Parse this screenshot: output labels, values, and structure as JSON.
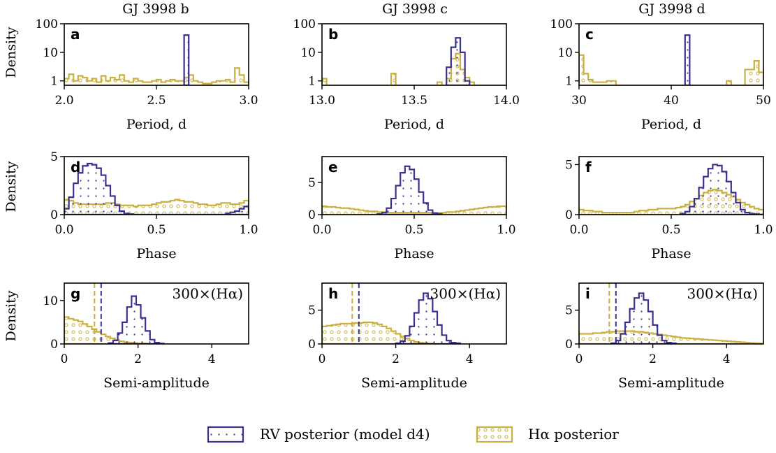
{
  "colors": {
    "rv": "#3b2f8f",
    "ha": "#c9b040"
  },
  "columns": [
    "GJ 3998 b",
    "GJ 3998 c",
    "GJ 3998 d"
  ],
  "ylabel": "Density",
  "legend": {
    "rv_label": "RV posterior (model d4)",
    "ha_label": "Hα posterior"
  },
  "chart_data": [
    {
      "letter": "a",
      "type": "histogram",
      "xlabel": "Period, d",
      "log_y": true,
      "xlim": [
        2.0,
        3.0
      ],
      "ylim": [
        0.7,
        100
      ],
      "xticks": [
        2.0,
        2.5,
        3.0
      ],
      "xtick_labels": [
        "2.0",
        "2.5",
        "3.0"
      ],
      "yticks": [
        1,
        10,
        100
      ],
      "ytick_labels": [
        "1",
        "10",
        "100"
      ],
      "bin_width": 0.025,
      "rv": {
        "start": 2.65,
        "values": [
          40
        ]
      },
      "ha": {
        "start": 2.0,
        "values": [
          1.2,
          1.7,
          1.0,
          1.5,
          1.3,
          1.0,
          1.2,
          0.9,
          1.5,
          1.0,
          1.3,
          1.1,
          1.6,
          1.0,
          0.9,
          1.2,
          1.0,
          0.9,
          0.9,
          1.0,
          1.1,
          0.9,
          1.0,
          1.1,
          1.0,
          1.0,
          1.3,
          1.6,
          1.0,
          0.9,
          0.8,
          0.8,
          0.9,
          1.0,
          1.0,
          1.1,
          0.9,
          2.8,
          1.6,
          0.9
        ]
      }
    },
    {
      "letter": "b",
      "type": "histogram",
      "xlabel": "Period, d",
      "log_y": true,
      "xlim": [
        13.0,
        14.0
      ],
      "ylim": [
        0.7,
        100
      ],
      "xticks": [
        13.0,
        13.5,
        14.0
      ],
      "xtick_labels": [
        "13.0",
        "13.5",
        "14.0"
      ],
      "yticks": [
        1,
        10,
        100
      ],
      "ytick_labels": [
        "1",
        "10",
        "100"
      ],
      "bin_width": 0.025,
      "rv": {
        "start": 13.675,
        "values": [
          3,
          15,
          32,
          10,
          1
        ]
      },
      "ha": {
        "start": 13.0,
        "values": [
          1.2,
          0,
          0,
          0,
          0,
          0,
          0,
          0,
          0,
          0,
          0,
          0,
          0,
          0,
          0,
          1.8,
          0,
          0,
          0,
          0,
          0,
          0,
          0,
          0,
          0,
          0.9,
          0,
          1.2,
          6,
          9,
          2.5,
          1.3,
          0.9,
          0,
          0,
          0,
          0,
          0,
          0,
          0
        ]
      }
    },
    {
      "letter": "c",
      "type": "histogram",
      "xlabel": "Period, d",
      "log_y": true,
      "xlim": [
        30,
        50
      ],
      "ylim": [
        0.7,
        100
      ],
      "xticks": [
        30,
        40,
        50
      ],
      "xtick_labels": [
        "30",
        "40",
        "50"
      ],
      "yticks": [
        1,
        10,
        100
      ],
      "ytick_labels": [
        "1",
        "10",
        "100"
      ],
      "bin_width": 0.5,
      "rv": {
        "start": 41.5,
        "values": [
          40
        ]
      },
      "ha": {
        "start": 30.0,
        "values": [
          8,
          1.8,
          1.1,
          0.9,
          0.9,
          0.9,
          1.0,
          1.0,
          0,
          0,
          0,
          0,
          0,
          0,
          0,
          0,
          0,
          0,
          0,
          0,
          0,
          0,
          0,
          0,
          0,
          0,
          0,
          0,
          0,
          0,
          0,
          0,
          1.0,
          0,
          0,
          0,
          2.5,
          2.5,
          5,
          2
        ]
      }
    },
    {
      "letter": "d",
      "type": "histogram",
      "xlabel": "Phase",
      "log_y": false,
      "xlim": [
        0,
        1
      ],
      "ylim": [
        0,
        5
      ],
      "xticks": [
        0.0,
        0.5,
        1.0
      ],
      "xtick_labels": [
        "0.0",
        "0.5",
        "1.0"
      ],
      "yticks": [
        0,
        5
      ],
      "ytick_labels": [
        "0",
        "5"
      ],
      "bin_width": 0.025,
      "rv": {
        "start": 0.0,
        "values": [
          0.5,
          1.5,
          2.7,
          3.6,
          4.2,
          4.4,
          4.3,
          4.0,
          3.4,
          2.5,
          1.6,
          0.8,
          0.3,
          0.1,
          0.05,
          0,
          0,
          0,
          0,
          0,
          0,
          0,
          0,
          0,
          0,
          0,
          0,
          0,
          0,
          0,
          0,
          0,
          0,
          0,
          0,
          0.1,
          0.2,
          0.3,
          0.5,
          0.7
        ]
      },
      "ha": {
        "start": 0.0,
        "values": [
          1.3,
          1.2,
          1.0,
          0.9,
          0.9,
          0.9,
          0.9,
          0.9,
          0.9,
          1.0,
          1.0,
          0.9,
          0.8,
          0.8,
          0.8,
          0.7,
          0.8,
          0.8,
          0.8,
          0.9,
          1.0,
          1.1,
          1.1,
          1.2,
          1.3,
          1.2,
          1.1,
          1.1,
          1.0,
          0.9,
          0.9,
          0.8,
          0.8,
          0.9,
          1.0,
          1.0,
          0.9,
          0.9,
          1.0,
          1.2
        ]
      }
    },
    {
      "letter": "e",
      "type": "histogram",
      "xlabel": "Phase",
      "log_y": false,
      "xlim": [
        0,
        1
      ],
      "ylim": [
        0,
        9
      ],
      "xticks": [
        0.0,
        0.5,
        1.0
      ],
      "xtick_labels": [
        "0.0",
        "0.5",
        "1.0"
      ],
      "yticks": [
        0,
        5
      ],
      "ytick_labels": [
        "0",
        "5"
      ],
      "bin_width": 0.025,
      "rv": {
        "start": 0.3,
        "values": [
          0.1,
          0.3,
          1.0,
          2.5,
          4.5,
          6.5,
          7.5,
          7.0,
          5.5,
          3.5,
          1.8,
          0.7,
          0.2,
          0.1
        ]
      },
      "ha": {
        "start": 0.0,
        "values": [
          1.3,
          1.2,
          1.2,
          1.1,
          1.0,
          1.0,
          0.9,
          0.8,
          0.7,
          0.6,
          0.5,
          0.5,
          0.4,
          0.4,
          0.3,
          0.3,
          0.3,
          0.3,
          0.3,
          0.3,
          0.3,
          0.3,
          0.3,
          0.3,
          0.3,
          0.3,
          0.3,
          0.4,
          0.4,
          0.5,
          0.6,
          0.7,
          0.8,
          0.9,
          1.0,
          1.1,
          1.2,
          1.2,
          1.3,
          1.3
        ]
      }
    },
    {
      "letter": "f",
      "type": "histogram",
      "xlabel": "Phase",
      "log_y": false,
      "xlim": [
        0,
        1
      ],
      "ylim": [
        0,
        5.8
      ],
      "xticks": [
        0.0,
        0.5,
        1.0
      ],
      "xtick_labels": [
        "0.0",
        "0.5",
        "1.0"
      ],
      "yticks": [
        0,
        5
      ],
      "ytick_labels": [
        "0",
        "5"
      ],
      "bin_width": 0.025,
      "rv": {
        "start": 0.55,
        "values": [
          0.1,
          0.3,
          0.8,
          1.6,
          2.7,
          3.8,
          4.6,
          5.0,
          4.9,
          4.3,
          3.3,
          2.2,
          1.2,
          0.5,
          0.2,
          0.1,
          0.05,
          0.02
        ]
      },
      "ha": {
        "start": 0.0,
        "values": [
          0.5,
          0.4,
          0.4,
          0.3,
          0.3,
          0.2,
          0.2,
          0.2,
          0.2,
          0.2,
          0.2,
          0.2,
          0.3,
          0.4,
          0.4,
          0.5,
          0.5,
          0.6,
          0.6,
          0.6,
          0.6,
          0.7,
          0.8,
          1.0,
          1.3,
          1.6,
          1.9,
          2.2,
          2.4,
          2.5,
          2.4,
          2.2,
          2.0,
          1.8,
          1.5,
          1.2,
          1.0,
          0.8,
          0.6,
          0.5
        ]
      }
    },
    {
      "letter": "g",
      "type": "histogram",
      "xlabel": "Semi-amplitude",
      "log_y": false,
      "xlim": [
        0,
        5
      ],
      "ylim": [
        0,
        14
      ],
      "xticks": [
        0,
        2,
        4
      ],
      "xtick_labels": [
        "0",
        "2",
        "4"
      ],
      "yticks": [
        0,
        10
      ],
      "ytick_labels": [
        "0",
        "10"
      ],
      "bin_width": 0.125,
      "rv": {
        "start": 1.2,
        "values": [
          0.2,
          0.8,
          2.5,
          5,
          8.5,
          11,
          9,
          6,
          3,
          1,
          0.3,
          0.1
        ]
      },
      "ha": {
        "start": 0.0,
        "values": [
          6.2,
          5.8,
          5.5,
          5.2,
          4.6,
          4.0,
          3.4,
          2.8,
          2.2,
          1.7,
          1.3,
          0.9,
          0.6,
          0.4,
          0.3,
          0.2,
          0.1,
          0.1
        ]
      },
      "annotation": "300×(Hα)",
      "vlines": [
        {
          "x": 0.82,
          "series": "ha"
        },
        {
          "x": 1.0,
          "series": "rv"
        }
      ]
    },
    {
      "letter": "h",
      "type": "histogram",
      "xlabel": "Semi-amplitude",
      "log_y": false,
      "xlim": [
        0,
        5
      ],
      "ylim": [
        0,
        9
      ],
      "xticks": [
        0,
        2,
        4
      ],
      "xtick_labels": [
        "0",
        "2",
        "4"
      ],
      "yticks": [
        0,
        5
      ],
      "ytick_labels": [
        "0",
        "5"
      ],
      "bin_width": 0.125,
      "rv": {
        "start": 2.0,
        "values": [
          0.1,
          0.4,
          1.2,
          2.6,
          4.6,
          6.5,
          7.5,
          6.7,
          4.8,
          2.8,
          1.3,
          0.5,
          0.2,
          0.1
        ]
      },
      "ha": {
        "start": 0.0,
        "values": [
          2.6,
          2.7,
          2.8,
          2.9,
          3.0,
          3.0,
          3.0,
          3.1,
          3.1,
          3.2,
          3.2,
          3.1,
          2.9,
          2.6,
          2.3,
          1.9,
          1.5,
          1.1,
          0.8,
          0.5,
          0.3,
          0.2,
          0.1,
          0.05
        ]
      },
      "annotation": "300×(Hα)",
      "vlines": [
        {
          "x": 0.82,
          "series": "ha"
        },
        {
          "x": 1.0,
          "series": "rv"
        }
      ]
    },
    {
      "letter": "i",
      "type": "histogram",
      "xlabel": "Semi-amplitude",
      "log_y": false,
      "xlim": [
        0,
        5
      ],
      "ylim": [
        0,
        9
      ],
      "xticks": [
        0,
        2,
        4
      ],
      "xtick_labels": [
        "0",
        "2",
        "4"
      ],
      "yticks": [
        0,
        5
      ],
      "ytick_labels": [
        "0",
        "5"
      ],
      "bin_width": 0.125,
      "rv": {
        "start": 0.875,
        "values": [
          0.1,
          0.5,
          1.5,
          3.2,
          5.2,
          6.8,
          7.5,
          6.5,
          4.8,
          2.8,
          1.3,
          0.5,
          0.2,
          0.1
        ]
      },
      "ha": {
        "start": 0.0,
        "values": [
          1.5,
          1.5,
          1.5,
          1.6,
          1.6,
          1.7,
          1.8,
          1.8,
          1.9,
          1.9,
          1.9,
          1.9,
          1.8,
          1.8,
          1.7,
          1.6,
          1.5,
          1.4,
          1.3,
          1.2,
          1.1,
          1.0,
          0.9,
          0.85,
          0.8,
          0.75,
          0.7,
          0.65,
          0.6,
          0.55,
          0.5,
          0.45,
          0.4,
          0.35,
          0.3,
          0.25,
          0.2,
          0.15,
          0.1,
          0.08
        ]
      },
      "annotation": "300×(Hα)",
      "vlines": [
        {
          "x": 0.82,
          "series": "ha"
        },
        {
          "x": 1.0,
          "series": "rv"
        }
      ]
    }
  ]
}
